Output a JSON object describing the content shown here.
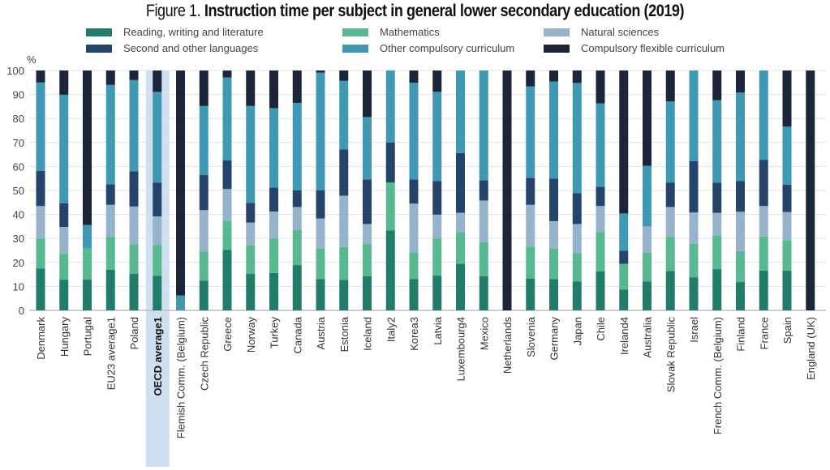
{
  "figure_title_prefix": "Figure 1.",
  "figure_title_bold": "Instruction time per subject in general lower secondary education (2019)",
  "chart_data": {
    "type": "bar",
    "stacked": true,
    "title": "Figure 1. Instruction time per subject in general lower secondary education (2019)",
    "xlabel": "",
    "ylabel": "%",
    "ylim": [
      0,
      100
    ],
    "yticks": [
      0,
      10,
      20,
      30,
      40,
      50,
      60,
      70,
      80,
      90,
      100
    ],
    "grid": true,
    "legend_position": "top",
    "highlighted_category": "OECD average1",
    "categories": [
      "Denmark",
      "Hungary",
      "Portugal",
      "EU23 average1",
      "Poland",
      "OECD average1",
      "Flemish Comm. (Belgium)",
      "Czech Republic",
      "Greece",
      "Norway",
      "Turkey",
      "Canada",
      "Austria",
      "Estonia",
      "Iceland",
      "Italy2",
      "Korea3",
      "Latvia",
      "Luxembourg4",
      "Mexico",
      "Netherlands",
      "Slovenia",
      "Germany",
      "Japan",
      "Chile",
      "Ireland4",
      "Australia",
      "Slovak Republic",
      "Israel",
      "French Comm. (Belgium)",
      "Finland",
      "France",
      "Spain",
      "England (UK)"
    ],
    "series": [
      {
        "name": "Reading, writing and literature",
        "color": "#217c6a",
        "values": [
          17.4,
          12.8,
          12.8,
          16.9,
          15.2,
          14.4,
          0,
          12.4,
          25.2,
          15.2,
          15.6,
          18.9,
          13.1,
          12.7,
          14.2,
          33.3,
          13.1,
          14.5,
          19.4,
          14.2,
          0,
          13.3,
          13.1,
          12.0,
          16.2,
          8.7,
          12.0,
          16.4,
          13.8,
          17.2,
          11.8,
          16.6,
          16.6,
          0
        ]
      },
      {
        "name": "Mathematics",
        "color": "#58b88f",
        "values": [
          12.6,
          10.8,
          13.0,
          13.8,
          12.4,
          12.8,
          0,
          12.1,
          12.1,
          11.9,
          14.4,
          14.7,
          12.6,
          13.7,
          13.6,
          20.0,
          11.1,
          15.5,
          13.3,
          14.3,
          0,
          13.2,
          12.6,
          11.8,
          16.4,
          10.7,
          12.0,
          14.3,
          14.0,
          14.1,
          12.9,
          14.2,
          12.7,
          0
        ]
      },
      {
        "name": "Natural sciences",
        "color": "#97b3cb",
        "values": [
          13.5,
          11.2,
          0,
          13.3,
          15.7,
          12.0,
          0,
          17.3,
          13.3,
          9.5,
          11.2,
          9.5,
          12.6,
          21.4,
          8.2,
          0,
          20.3,
          9.9,
          8.0,
          17.3,
          0,
          17.5,
          11.5,
          12.2,
          10.9,
          0,
          11.0,
          12.4,
          13.0,
          9.4,
          16.4,
          12.7,
          11.7,
          0
        ]
      },
      {
        "name": "Second and other languages",
        "color": "#25446b",
        "values": [
          14.7,
          9.9,
          0,
          8.6,
          14.7,
          14.1,
          0,
          14.6,
          11.9,
          8.2,
          10.0,
          7.0,
          11.8,
          19.3,
          18.6,
          16.7,
          10.1,
          14.0,
          24.9,
          8.4,
          0,
          11.2,
          17.8,
          12.9,
          8.0,
          5.5,
          0,
          10.2,
          21.4,
          12.6,
          12.8,
          19.3,
          11.4,
          0
        ]
      },
      {
        "name": "Other compulsory curriculum",
        "color": "#3f99b5",
        "values": [
          36.8,
          45.2,
          9.8,
          41.4,
          38.0,
          37.8,
          6.2,
          28.8,
          34.6,
          40.4,
          33.1,
          36.4,
          49.0,
          28.6,
          26.0,
          30.0,
          40.3,
          37.2,
          34.4,
          45.8,
          0,
          38.2,
          40.4,
          45.9,
          34.8,
          15.5,
          25.3,
          33.8,
          37.8,
          34.3,
          36.9,
          37.2,
          24.2,
          0
        ]
      },
      {
        "name": "Compulsory flexible curriculum",
        "color": "#1c2539",
        "values": [
          5.0,
          10.1,
          64.4,
          6.0,
          4.0,
          8.9,
          93.8,
          14.8,
          2.9,
          14.8,
          15.7,
          13.5,
          0.9,
          4.3,
          19.4,
          0,
          5.1,
          8.9,
          0,
          0,
          100,
          6.6,
          4.6,
          5.2,
          13.7,
          59.6,
          39.7,
          12.9,
          0,
          12.4,
          9.2,
          0,
          23.4,
          100
        ]
      }
    ]
  }
}
